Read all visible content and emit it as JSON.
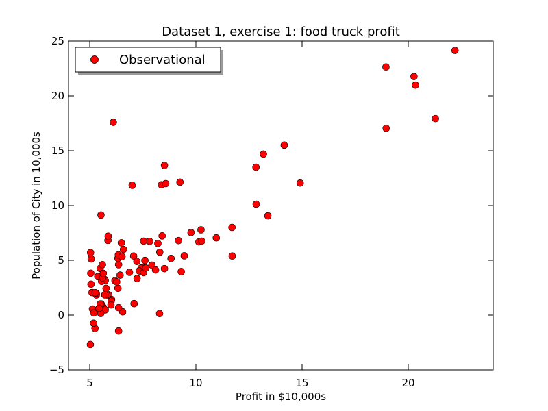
{
  "chart_data": {
    "type": "scatter",
    "title": "Dataset 1, exercise 1: food truck profit",
    "xlabel": "Profit in $10,000s",
    "ylabel": "Population of City in 10,000s",
    "xlim": [
      4,
      24
    ],
    "ylim": [
      -5,
      25
    ],
    "xticks": [
      5,
      10,
      15,
      20
    ],
    "yticks": [
      -5,
      0,
      5,
      10,
      15,
      20,
      25
    ],
    "xtick_labels": [
      "5",
      "10",
      "15",
      "20"
    ],
    "ytick_labels": [
      "−5",
      "0",
      "5",
      "10",
      "15",
      "20",
      "25"
    ],
    "legend": {
      "placement": "top-left",
      "shadow": true
    },
    "marker_color": "#ff0000",
    "series": [
      {
        "name": "Observational",
        "points": [
          [
            6.11,
            17.59
          ],
          [
            5.53,
            9.13
          ],
          [
            8.52,
            13.66
          ],
          [
            7.0,
            11.85
          ],
          [
            5.86,
            6.82
          ],
          [
            8.38,
            11.89
          ],
          [
            7.48,
            4.35
          ],
          [
            8.58,
            12.0
          ],
          [
            6.49,
            6.6
          ],
          [
            5.05,
            3.82
          ],
          [
            5.71,
            3.25
          ],
          [
            14.16,
            15.51
          ],
          [
            5.73,
            3.16
          ],
          [
            8.41,
            7.23
          ],
          [
            5.64,
            0.72
          ],
          [
            5.38,
            3.51
          ],
          [
            6.37,
            5.3
          ],
          [
            5.13,
            0.56
          ],
          [
            6.43,
            3.65
          ],
          [
            7.07,
            5.39
          ],
          [
            6.19,
            3.14
          ],
          [
            20.27,
            21.77
          ],
          [
            5.49,
            4.26
          ],
          [
            6.33,
            5.19
          ],
          [
            5.56,
            3.08
          ],
          [
            18.95,
            22.64
          ],
          [
            12.83,
            13.5
          ],
          [
            10.96,
            7.05
          ],
          [
            13.18,
            14.69
          ],
          [
            22.2,
            24.15
          ],
          [
            5.25,
            -1.22
          ],
          [
            6.59,
            5.99
          ],
          [
            9.25,
            12.13
          ],
          [
            5.89,
            1.85
          ],
          [
            8.21,
            6.54
          ],
          [
            7.93,
            4.56
          ],
          [
            8.1,
            4.12
          ],
          [
            5.61,
            3.39
          ],
          [
            12.84,
            10.12
          ],
          [
            6.35,
            5.5
          ],
          [
            5.41,
            0.56
          ],
          [
            6.87,
            3.91
          ],
          [
            11.71,
            5.39
          ],
          [
            5.77,
            2.44
          ],
          [
            7.82,
            6.73
          ],
          [
            7.09,
            1.05
          ],
          [
            5.07,
            5.13
          ],
          [
            5.8,
            1.84
          ],
          [
            11.7,
            8.0
          ],
          [
            5.54,
            1.02
          ],
          [
            7.54,
            6.75
          ],
          [
            5.31,
            1.84
          ],
          [
            7.42,
            4.29
          ],
          [
            7.6,
            4.99
          ],
          [
            6.03,
            1.42
          ],
          [
            6.33,
            2.45
          ],
          [
            6.36,
            4.6
          ],
          [
            6.27,
            3.03
          ],
          [
            5.64,
            3.81
          ],
          [
            9.31,
            3.97
          ],
          [
            9.45,
            5.41
          ],
          [
            8.83,
            5.17
          ],
          [
            5.18,
            -0.74
          ],
          [
            21.28,
            17.93
          ],
          [
            14.91,
            12.05
          ],
          [
            18.96,
            17.05
          ],
          [
            7.22,
            4.89
          ],
          [
            8.3,
            5.74
          ],
          [
            10.24,
            7.78
          ],
          [
            5.5,
            1.02
          ],
          [
            20.34,
            20.99
          ],
          [
            10.14,
            6.68
          ],
          [
            7.33,
            4.03
          ],
          [
            6.01,
            1.28
          ],
          [
            7.23,
            3.34
          ],
          [
            5.03,
            -2.68
          ],
          [
            6.55,
            0.3
          ],
          [
            7.54,
            3.88
          ],
          [
            5.04,
            5.7
          ],
          [
            10.27,
            6.75
          ],
          [
            5.11,
            2.06
          ],
          [
            5.73,
            0.48
          ],
          [
            5.19,
            0.2
          ],
          [
            6.36,
            0.68
          ],
          [
            9.77,
            7.54
          ],
          [
            6.52,
            5.34
          ],
          [
            8.52,
            4.24
          ],
          [
            9.18,
            6.8
          ],
          [
            6.0,
            0.93
          ],
          [
            5.52,
            0.15
          ],
          [
            5.06,
            2.82
          ],
          [
            5.71,
            1.85
          ],
          [
            7.64,
            4.3
          ],
          [
            5.87,
            7.2
          ],
          [
            5.31,
            1.99
          ],
          [
            8.29,
            0.14
          ],
          [
            13.39,
            9.06
          ],
          [
            5.44,
            0.62
          ],
          [
            6.36,
            -1.45
          ],
          [
            5.6,
            4.61
          ],
          [
            5.26,
            2.04
          ]
        ]
      }
    ]
  }
}
